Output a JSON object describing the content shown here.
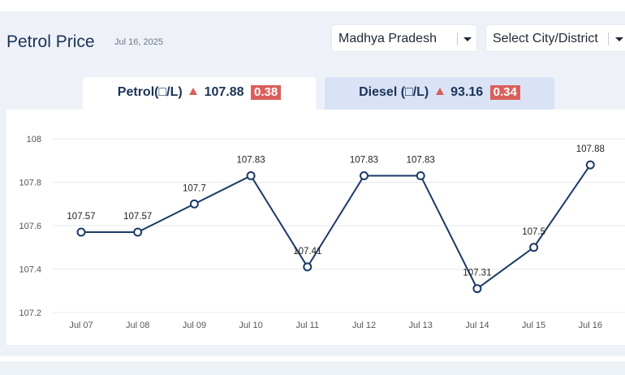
{
  "header": {
    "title": "Petrol Price",
    "date": "Jul 16, 2025"
  },
  "filters": {
    "state": "Madhya Pradesh",
    "city_placeholder": "Select City/District"
  },
  "tabs": {
    "petrol": {
      "label": "Petrol(□/L)",
      "price": "107.88",
      "change": "0.38"
    },
    "diesel": {
      "label": "Diesel (□/L)",
      "price": "93.16",
      "change": "0.34"
    }
  },
  "colors": {
    "line": "#1b3a66",
    "increase": "#d9605c",
    "active_tab": "#ffffff",
    "inactive_tab": "#d9e3f5"
  },
  "icons": {
    "dropdown": "chevron-down-icon",
    "change": "triangle-up-icon"
  },
  "chart_data": {
    "type": "line",
    "categories": [
      "Jul 07",
      "Jul 08",
      "Jul 09",
      "Jul 10",
      "Jul 11",
      "Jul 12",
      "Jul 13",
      "Jul 14",
      "Jul 15",
      "Jul 16"
    ],
    "values": [
      107.57,
      107.57,
      107.7,
      107.83,
      107.41,
      107.83,
      107.83,
      107.31,
      107.5,
      107.88
    ],
    "data_labels": [
      "107.57",
      "107.57",
      "107.7",
      "107.83",
      "107.41",
      "107.83",
      "107.83",
      "107.31",
      "107.5",
      "107.88"
    ],
    "y_ticks": [
      "108",
      "107.8",
      "107.6",
      "107.4",
      "107.2"
    ],
    "ylim": [
      107.2,
      108
    ],
    "grid": true,
    "legend": "none"
  }
}
